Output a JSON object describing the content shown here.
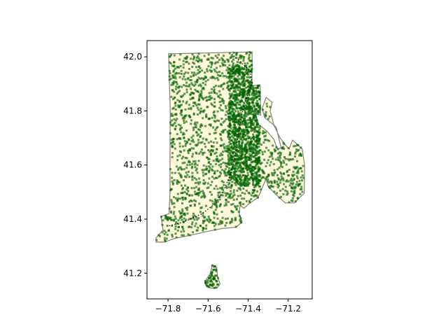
{
  "chart_data": {
    "type": "scatter",
    "title": "",
    "xlabel": "",
    "ylabel": "",
    "xlim": [
      -71.905,
      -71.08
    ],
    "ylim": [
      41.105,
      42.06
    ],
    "xticks": [
      {
        "value": -71.8,
        "label": "−71.8"
      },
      {
        "value": -71.6,
        "label": "−71.6"
      },
      {
        "value": -71.4,
        "label": "−71.4"
      },
      {
        "value": -71.2,
        "label": "−71.2"
      }
    ],
    "yticks": [
      {
        "value": 41.2,
        "label": "41.2"
      },
      {
        "value": 41.4,
        "label": "41.4"
      },
      {
        "value": 41.6,
        "label": "41.6"
      },
      {
        "value": 41.8,
        "label": "41.8"
      },
      {
        "value": 42.0,
        "label": "42.0"
      }
    ],
    "grid": false,
    "colors": {
      "land": "#fff8dc",
      "border": "#7f7f7f",
      "points": "#006400",
      "route": "#000000"
    },
    "mainland": [
      [
        -71.797,
        42.011
      ],
      [
        -71.38,
        42.018
      ],
      [
        -71.381,
        41.893
      ],
      [
        -71.34,
        41.896
      ],
      [
        -71.338,
        41.785
      ],
      [
        -71.362,
        41.79
      ],
      [
        -71.348,
        41.75
      ],
      [
        -71.305,
        41.725
      ],
      [
        -71.27,
        41.693
      ],
      [
        -71.255,
        41.66
      ],
      [
        -71.235,
        41.663
      ],
      [
        -71.26,
        41.74
      ],
      [
        -71.318,
        41.776
      ],
      [
        -71.33,
        41.81
      ],
      [
        -71.31,
        41.85
      ],
      [
        -71.28,
        41.832
      ],
      [
        -71.29,
        41.8
      ],
      [
        -71.27,
        41.745
      ],
      [
        -71.24,
        41.7
      ],
      [
        -71.215,
        41.675
      ],
      [
        -71.195,
        41.66
      ],
      [
        -71.178,
        41.692
      ],
      [
        -71.13,
        41.66
      ],
      [
        -71.118,
        41.6
      ],
      [
        -71.12,
        41.495
      ],
      [
        -71.17,
        41.46
      ],
      [
        -71.215,
        41.46
      ],
      [
        -71.26,
        41.49
      ],
      [
        -71.3,
        41.52
      ],
      [
        -71.31,
        41.55
      ],
      [
        -71.35,
        41.48
      ],
      [
        -71.37,
        41.47
      ],
      [
        -71.4,
        41.455
      ],
      [
        -71.42,
        41.44
      ],
      [
        -71.44,
        41.45
      ],
      [
        -71.445,
        41.42
      ],
      [
        -71.43,
        41.39
      ],
      [
        -71.46,
        41.37
      ],
      [
        -71.53,
        41.365
      ],
      [
        -71.6,
        41.355
      ],
      [
        -71.69,
        41.34
      ],
      [
        -71.76,
        41.33
      ],
      [
        -71.82,
        41.315
      ],
      [
        -71.86,
        41.315
      ],
      [
        -71.86,
        41.33
      ],
      [
        -71.825,
        41.36
      ],
      [
        -71.835,
        41.41
      ],
      [
        -71.795,
        41.42
      ],
      [
        -71.79,
        41.5
      ],
      [
        -71.79,
        41.64
      ],
      [
        -71.789,
        41.8
      ],
      [
        -71.797,
        42.011
      ]
    ],
    "block_island": [
      [
        -71.578,
        41.231
      ],
      [
        -71.557,
        41.222
      ],
      [
        -71.553,
        41.19
      ],
      [
        -71.54,
        41.16
      ],
      [
        -71.555,
        41.145
      ],
      [
        -71.585,
        41.145
      ],
      [
        -71.61,
        41.152
      ],
      [
        -71.615,
        41.17
      ],
      [
        -71.59,
        41.198
      ],
      [
        -71.578,
        41.231
      ]
    ],
    "route": [
      [
        -71.795,
        41.375
      ],
      [
        -71.72,
        41.39
      ],
      [
        -71.63,
        41.42
      ],
      [
        -71.56,
        41.46
      ],
      [
        -71.52,
        41.51
      ],
      [
        -71.49,
        41.56
      ],
      [
        -71.468,
        41.62
      ],
      [
        -71.455,
        41.68
      ],
      [
        -71.445,
        41.73
      ],
      [
        -71.43,
        41.79
      ],
      [
        -71.42,
        41.825
      ],
      [
        -71.4,
        41.865
      ],
      [
        -71.38,
        41.905
      ],
      [
        -71.39,
        41.95
      ],
      [
        -71.43,
        41.975
      ],
      [
        -71.48,
        42.01
      ]
    ]
  }
}
